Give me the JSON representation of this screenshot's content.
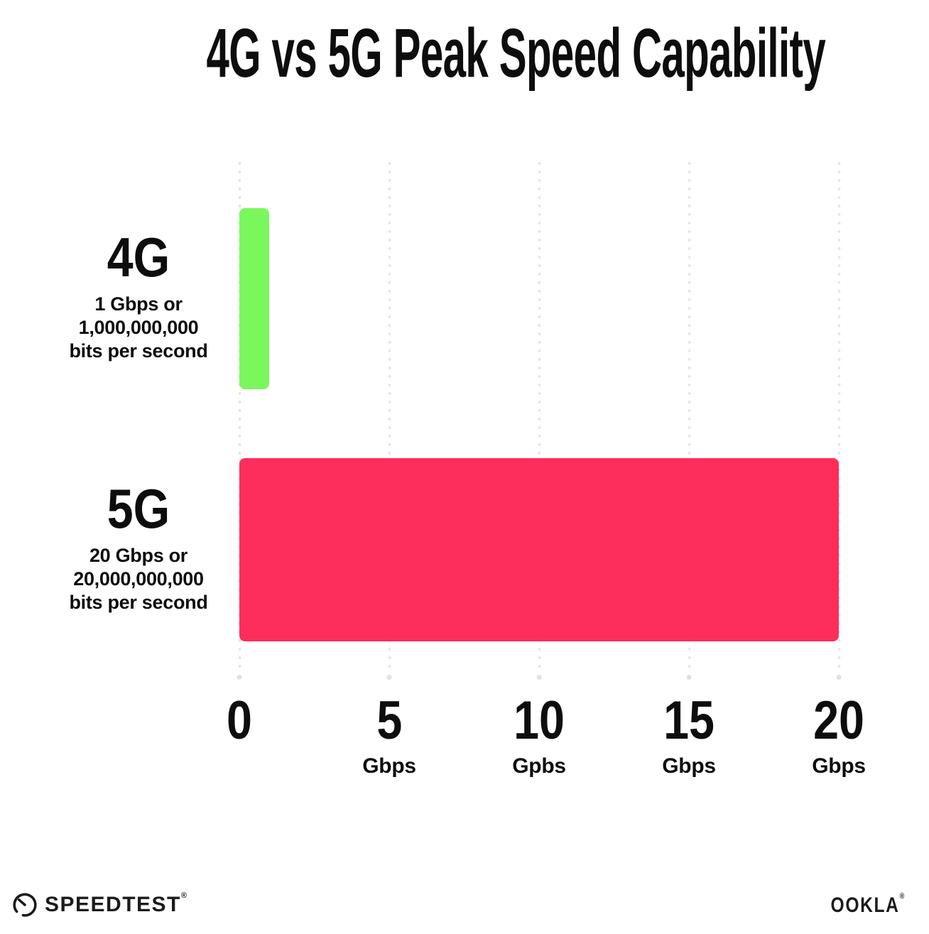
{
  "title": "4G vs 5G Peak Speed Capability",
  "chart_data": {
    "type": "bar",
    "orientation": "horizontal",
    "title": "4G vs 5G Peak Speed Capability",
    "categories": [
      "4G",
      "5G"
    ],
    "values": [
      1,
      20
    ],
    "value_unit": "Gbps",
    "bar_colors": [
      "#7bf75e",
      "#fd2e5b"
    ],
    "category_sublabels": [
      [
        "1 Gbps or",
        "1,000,000,000",
        "bits per second"
      ],
      [
        "20 Gbps or",
        "20,000,000,000",
        "bits per second"
      ]
    ],
    "xlabel": "",
    "ylabel": "",
    "xlim": [
      0,
      20
    ],
    "x_ticks": [
      {
        "value": 0,
        "label": "0",
        "unit": ""
      },
      {
        "value": 5,
        "label": "5",
        "unit": "Gbps"
      },
      {
        "value": 10,
        "label": "10",
        "unit": "Gpbs"
      },
      {
        "value": 15,
        "label": "15",
        "unit": "Gbps"
      },
      {
        "value": 20,
        "label": "20",
        "unit": "Gbps"
      }
    ],
    "grid": "vertical-dotted",
    "legend": "none"
  },
  "footer": {
    "speedtest_label": "SPEEDTEST",
    "speedtest_trademark": "®",
    "ookla_label": "OOKLA",
    "ookla_trademark": "®"
  },
  "colors": {
    "background": "#ffffff",
    "text": "#0d0d0d",
    "bar_4g": "#7bf75e",
    "bar_5g": "#fd2e5b",
    "gridline_dot": "#e2e5ef",
    "gridline_end_dot": "#dde1ec"
  }
}
